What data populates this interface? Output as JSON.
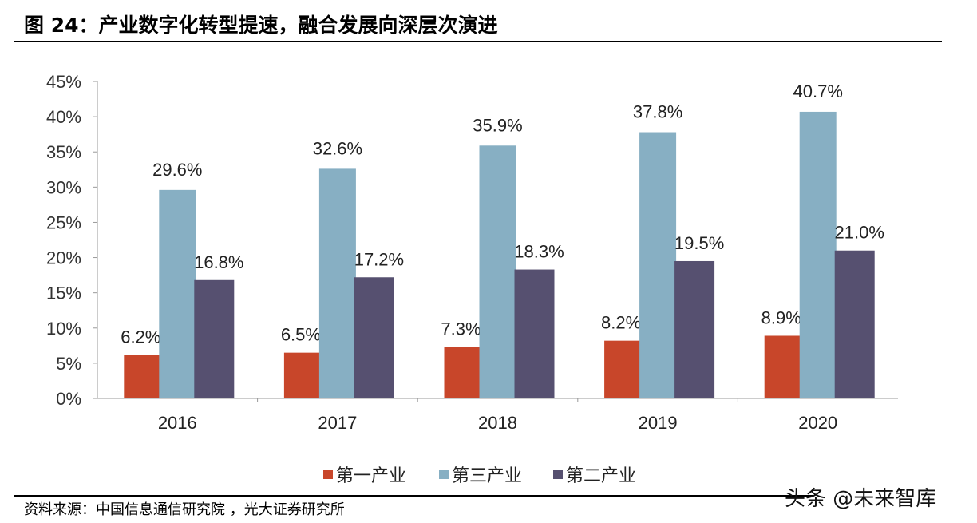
{
  "title": "图 24：产业数字化转型提速，融合发展向深层次演进",
  "source": "资料来源：中国信息通信研究院 ，光大证券研究所",
  "watermark": "头条 @未来智库",
  "chart_data": {
    "type": "bar",
    "categories": [
      "2016",
      "2017",
      "2018",
      "2019",
      "2020"
    ],
    "series": [
      {
        "name": "第一产业",
        "color": "#C8462A",
        "values": [
          6.2,
          6.5,
          7.3,
          8.2,
          8.9
        ],
        "labels": [
          "6.2%",
          "6.5%",
          "7.3%",
          "8.2%",
          "8.9%"
        ]
      },
      {
        "name": "第三产业",
        "color": "#87AFC3",
        "values": [
          29.6,
          32.6,
          35.9,
          37.8,
          40.7
        ],
        "labels": [
          "29.6%",
          "32.6%",
          "35.9%",
          "37.8%",
          "40.7%"
        ]
      },
      {
        "name": "第二产业",
        "color": "#565070",
        "values": [
          16.8,
          17.2,
          18.3,
          19.5,
          21.0
        ],
        "labels": [
          "16.8%",
          "17.2%",
          "18.3%",
          "19.5%",
          "21.0%"
        ]
      }
    ],
    "ylim": [
      0,
      45
    ],
    "yticks": [
      "0%",
      "5%",
      "10%",
      "15%",
      "20%",
      "25%",
      "30%",
      "35%",
      "40%",
      "45%"
    ],
    "grid": false,
    "legend": "bottom"
  }
}
